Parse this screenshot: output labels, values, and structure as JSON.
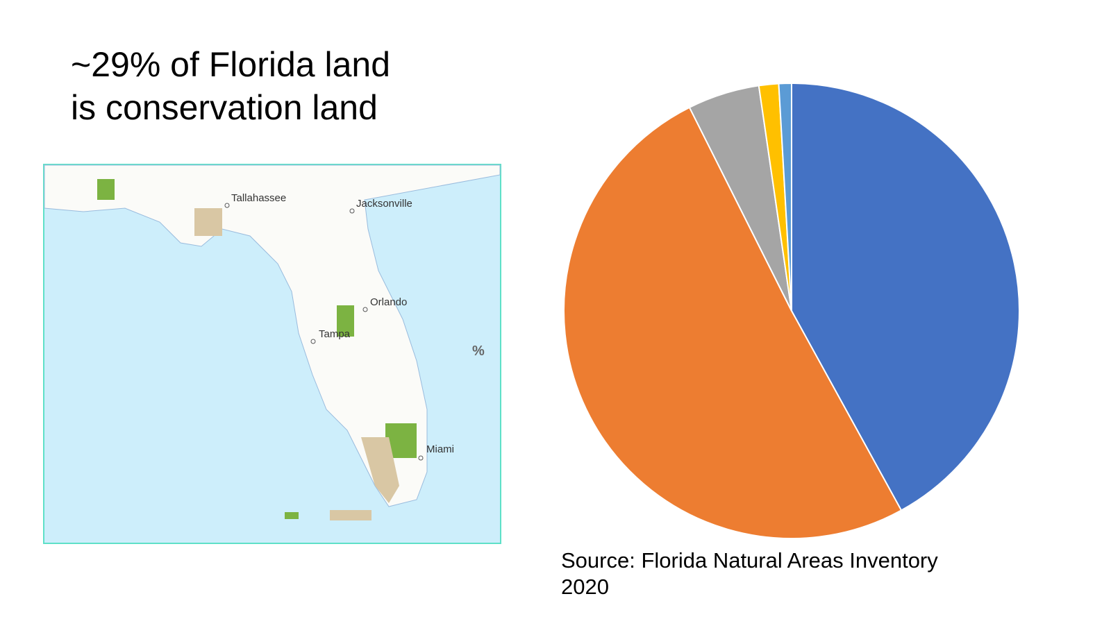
{
  "title": [
    "~29% of Florida land",
    "is conservation land"
  ],
  "map": {
    "labels": [
      "Tallahassee",
      "Jacksonville",
      "Orlando",
      "Tampa",
      "Miami",
      "%"
    ]
  },
  "chart_data": {
    "type": "pie",
    "values": [
      42,
      50.6,
      5.1,
      1.4,
      0.9
    ],
    "colors": [
      "#4472c4",
      "#ed7d31",
      "#a5a5a5",
      "#ffc000",
      "#5b9bd5"
    ]
  },
  "source": [
    "Source: Florida Natural Areas Inventory",
    "2020"
  ]
}
